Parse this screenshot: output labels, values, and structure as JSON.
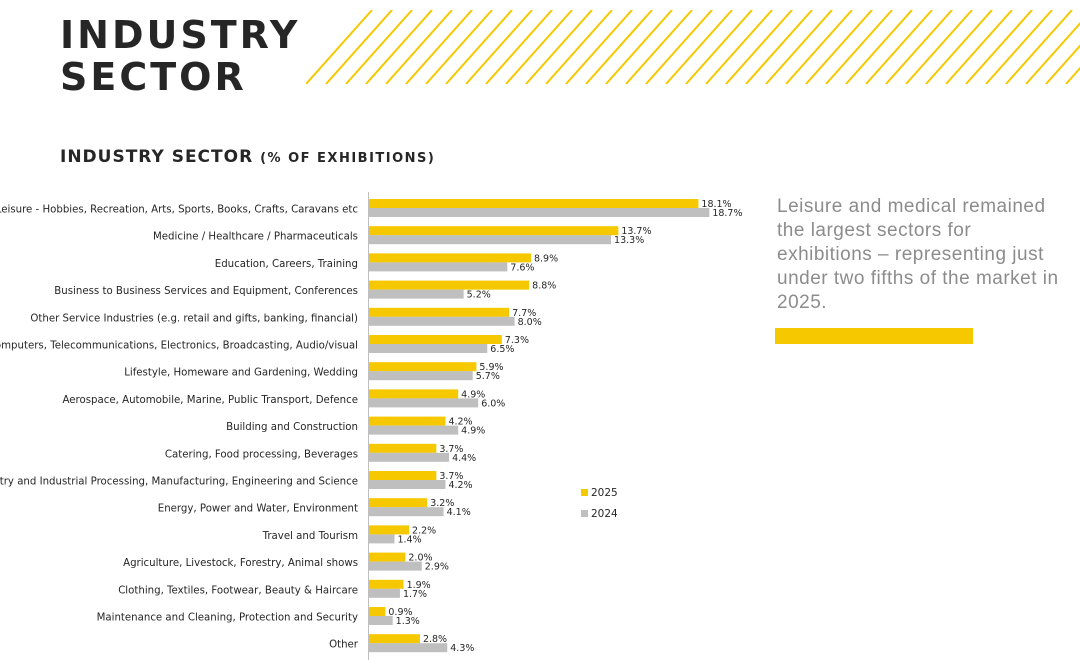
{
  "header": {
    "title_line1": "INDUSTRY",
    "title_line2": "SECTOR"
  },
  "chart_title": {
    "main": "INDUSTRY SECTOR",
    "sub": "(% OF EXHIBITIONS)"
  },
  "callout": {
    "text": "Leisure and medical remained the largest sectors for exhibitions – representing just under two fifths of the market in 2025."
  },
  "colors": {
    "accent": "#F5C800",
    "series_2025": "#F5C800",
    "series_2024": "#BFBFBF",
    "title": "#262626",
    "callout_text": "#8C8C8C"
  },
  "chart_data": {
    "type": "bar",
    "orientation": "horizontal",
    "title": "INDUSTRY SECTOR (% OF EXHIBITIONS)",
    "unit": "%",
    "xlim": [
      0,
      20
    ],
    "legend_position": "right",
    "categories": [
      "Leisure - Hobbies, Recreation, Arts, Sports, Books, Crafts, Caravans etc",
      "Medicine / Healthcare / Pharmaceuticals",
      "Education, Careers, Training",
      "Business to Business Services and Equipment, Conferences",
      "Other Service Industries (e.g. retail and gifts, banking, financial)",
      "Computers,  Telecommunications, Electronics, Broadcasting, Audio/visual",
      "Lifestyle, Homeware and Gardening, Wedding",
      "Aerospace, Automobile, Marine, Public Transport, Defence",
      "Building and Construction",
      "Catering, Food processing, Beverages",
      "Industry and Industrial Processing, Manufacturing, Engineering and Science",
      "Energy, Power and Water, Environment",
      "Travel and Tourism",
      "Agriculture, Livestock, Forestry, Animal shows",
      "Clothing, Textiles, Footwear, Beauty & Haircare",
      "Maintenance and Cleaning, Protection and Security",
      "Other"
    ],
    "series": [
      {
        "name": "2025",
        "color": "#F5C800",
        "values": [
          18.1,
          13.7,
          8.9,
          8.8,
          7.7,
          7.3,
          5.9,
          4.9,
          4.2,
          3.7,
          3.7,
          3.2,
          2.2,
          2.0,
          1.9,
          0.9,
          2.8
        ]
      },
      {
        "name": "2024",
        "color": "#BFBFBF",
        "values": [
          18.7,
          13.3,
          7.6,
          5.2,
          8.0,
          6.5,
          5.7,
          6.0,
          4.9,
          4.4,
          4.2,
          4.1,
          1.4,
          2.9,
          1.7,
          1.3,
          4.3
        ]
      }
    ]
  }
}
